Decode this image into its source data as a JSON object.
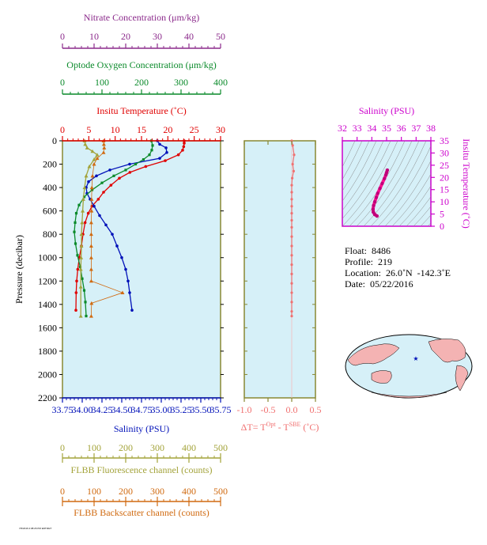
{
  "colors": {
    "nitrate": "#8b2a8b",
    "oxygen": "#0a8a2a",
    "temperature": "#e00000",
    "salinity": "#0010b8",
    "fluorescence": "#a3a33a",
    "backscatter": "#d06a10",
    "delta_t": "#f07070",
    "ts_axis": "#cc00cc",
    "panel_bg": "#d6f0f8",
    "frame": "#888833"
  },
  "chart_data": [
    {
      "type": "line",
      "panel": "profiles",
      "ylabel": "Pressure (decibar)",
      "yticks": [
        0,
        200,
        400,
        600,
        800,
        1000,
        1200,
        1400,
        1600,
        1800,
        2000,
        2200
      ],
      "ylim": [
        2200,
        0
      ],
      "axes": [
        {
          "key": "nitrate",
          "label": "Nitrate Concentration (μm/kg)",
          "ticks": [
            "0",
            "10",
            "20",
            "30",
            "40",
            "50"
          ],
          "lim": [
            0,
            50
          ]
        },
        {
          "key": "oxygen",
          "label": "Optode Oxygen Concentration (μm/kg)",
          "ticks": [
            "0",
            "100",
            "200",
            "300",
            "400"
          ],
          "lim": [
            0,
            400
          ]
        },
        {
          "key": "temperature",
          "label": "Insitu Temperature (˚C)",
          "ticks": [
            "0",
            "5",
            "10",
            "15",
            "20",
            "25",
            "30"
          ],
          "lim": [
            0,
            30
          ]
        },
        {
          "key": "salinity",
          "label": "Salinity (PSU)",
          "ticks": [
            "33.75",
            "34.00",
            "34.25",
            "34.50",
            "34.75",
            "35.00",
            "35.25",
            "35.50",
            "35.75"
          ],
          "lim": [
            33.75,
            35.75
          ]
        },
        {
          "key": "fluorescence",
          "label": "FLBB Fluorescence channel (counts)",
          "ticks": [
            "0",
            "100",
            "200",
            "300",
            "400",
            "500"
          ],
          "lim": [
            0,
            500
          ]
        },
        {
          "key": "backscatter",
          "label": "FLBB Backscatter channel (counts)",
          "ticks": [
            "0",
            "100",
            "200",
            "300",
            "400",
            "500"
          ],
          "lim": [
            0,
            500
          ]
        }
      ],
      "series": [
        {
          "key": "temperature",
          "x": [
            23.1,
            23.1,
            23.0,
            22.8,
            22.0,
            19.5,
            15.8,
            12.8,
            10.8,
            9.2,
            7.8,
            6.8,
            5.6,
            4.9,
            4.3,
            3.9,
            3.6,
            3.2,
            2.9,
            2.7,
            2.6,
            2.55
          ],
          "y": [
            0,
            20,
            50,
            80,
            120,
            170,
            220,
            270,
            320,
            380,
            440,
            500,
            560,
            620,
            700,
            800,
            900,
            1000,
            1100,
            1200,
            1300,
            1450
          ]
        },
        {
          "key": "salinity",
          "x": [
            34.95,
            34.98,
            35.06,
            35.07,
            34.98,
            34.6,
            34.35,
            34.18,
            34.08,
            34.05,
            34.06,
            34.1,
            34.15,
            34.22,
            34.3,
            34.38,
            34.44,
            34.5,
            34.55,
            34.58,
            34.6,
            34.63
          ],
          "y": [
            0,
            30,
            60,
            100,
            150,
            200,
            250,
            300,
            350,
            400,
            450,
            500,
            560,
            640,
            720,
            800,
            900,
            1000,
            1100,
            1200,
            1300,
            1450
          ]
        },
        {
          "key": "oxygen",
          "x": [
            225,
            228,
            226,
            220,
            205,
            185,
            160,
            130,
            100,
            75,
            55,
            42,
            35,
            32,
            30,
            33,
            38,
            45,
            50,
            55,
            58,
            60
          ],
          "y": [
            0,
            40,
            80,
            120,
            160,
            200,
            250,
            300,
            360,
            420,
            480,
            550,
            620,
            700,
            780,
            880,
            980,
            1080,
            1180,
            1280,
            1380,
            1500
          ]
        },
        {
          "key": "fluorescence",
          "x": [
            70,
            72,
            78,
            95,
            110,
            100,
            85,
            75,
            70,
            66,
            64,
            62,
            60,
            60,
            59,
            58,
            58,
            58
          ],
          "y": [
            0,
            30,
            60,
            90,
            120,
            160,
            220,
            300,
            400,
            500,
            600,
            700,
            800,
            900,
            1000,
            1100,
            1250,
            1500
          ]
        },
        {
          "key": "backscatter",
          "x": [
            130,
            131,
            132,
            130,
            110,
            100,
            95,
            93,
            92,
            92,
            91,
            91,
            91,
            91,
            91,
            91,
            190,
            92,
            91
          ],
          "y": [
            0,
            30,
            60,
            100,
            150,
            200,
            300,
            400,
            500,
            600,
            700,
            800,
            900,
            1000,
            1100,
            1200,
            1300,
            1390,
            1500
          ]
        }
      ]
    },
    {
      "type": "line",
      "panel": "delta_t",
      "xlabel": "ΔT= TOpt - TSBE (˚C)",
      "xlabel_parts": {
        "prefix": "ΔT= T",
        "sup1": "Opt",
        "mid": " - T",
        "sup2": "SBE",
        "suffix": " (˚C)"
      },
      "xticks": [
        "-1.0",
        "-0.5",
        "0.0",
        "0.5"
      ],
      "xlim": [
        -1.0,
        0.5
      ],
      "ylim": [
        2200,
        0
      ],
      "x": [
        0.0,
        0.02,
        0.05,
        0.02,
        0.04,
        0.01,
        0.0,
        0.0,
        0.0,
        0.0,
        0.0,
        0.0,
        0.0,
        0.0,
        0.0,
        0.0,
        0.0,
        0.0,
        0.0,
        0.0,
        0.0,
        0.0,
        0.0
      ],
      "y": [
        0,
        40,
        120,
        200,
        260,
        320,
        380,
        440,
        500,
        560,
        620,
        680,
        740,
        820,
        900,
        980,
        1060,
        1140,
        1220,
        1300,
        1380,
        1460,
        1500
      ]
    },
    {
      "type": "scatter",
      "panel": "ts_diagram",
      "title": "Salinity (PSU)",
      "ylabel": "Insitu Temperature (˚C)",
      "xticks": [
        "32",
        "33",
        "34",
        "35",
        "36",
        "37",
        "38"
      ],
      "xlim": [
        32,
        38
      ],
      "yticks": [
        "0",
        "5",
        "10",
        "15",
        "20",
        "25",
        "30",
        "35"
      ],
      "ylim": [
        0,
        35
      ],
      "x": [
        35.05,
        35.0,
        34.95,
        34.85,
        34.7,
        34.55,
        34.4,
        34.3,
        34.2,
        34.12,
        34.08,
        34.1,
        34.2,
        34.35
      ],
      "y": [
        23.0,
        22.0,
        21.0,
        19.5,
        17.5,
        15.5,
        13.5,
        11.8,
        10.0,
        8.5,
        7.0,
        5.8,
        4.8,
        4.2
      ]
    }
  ],
  "info": {
    "float": "Float:  8486",
    "profile": "Profile:  219",
    "location": "Location:  26.0˚N  -142.3˚E",
    "date": "Date:  05/22/2016"
  },
  "map": {
    "marker": "★"
  },
  "footer": {
    "tiny_text": "7/6/2016 2:08:26 PM  EDT0027"
  }
}
